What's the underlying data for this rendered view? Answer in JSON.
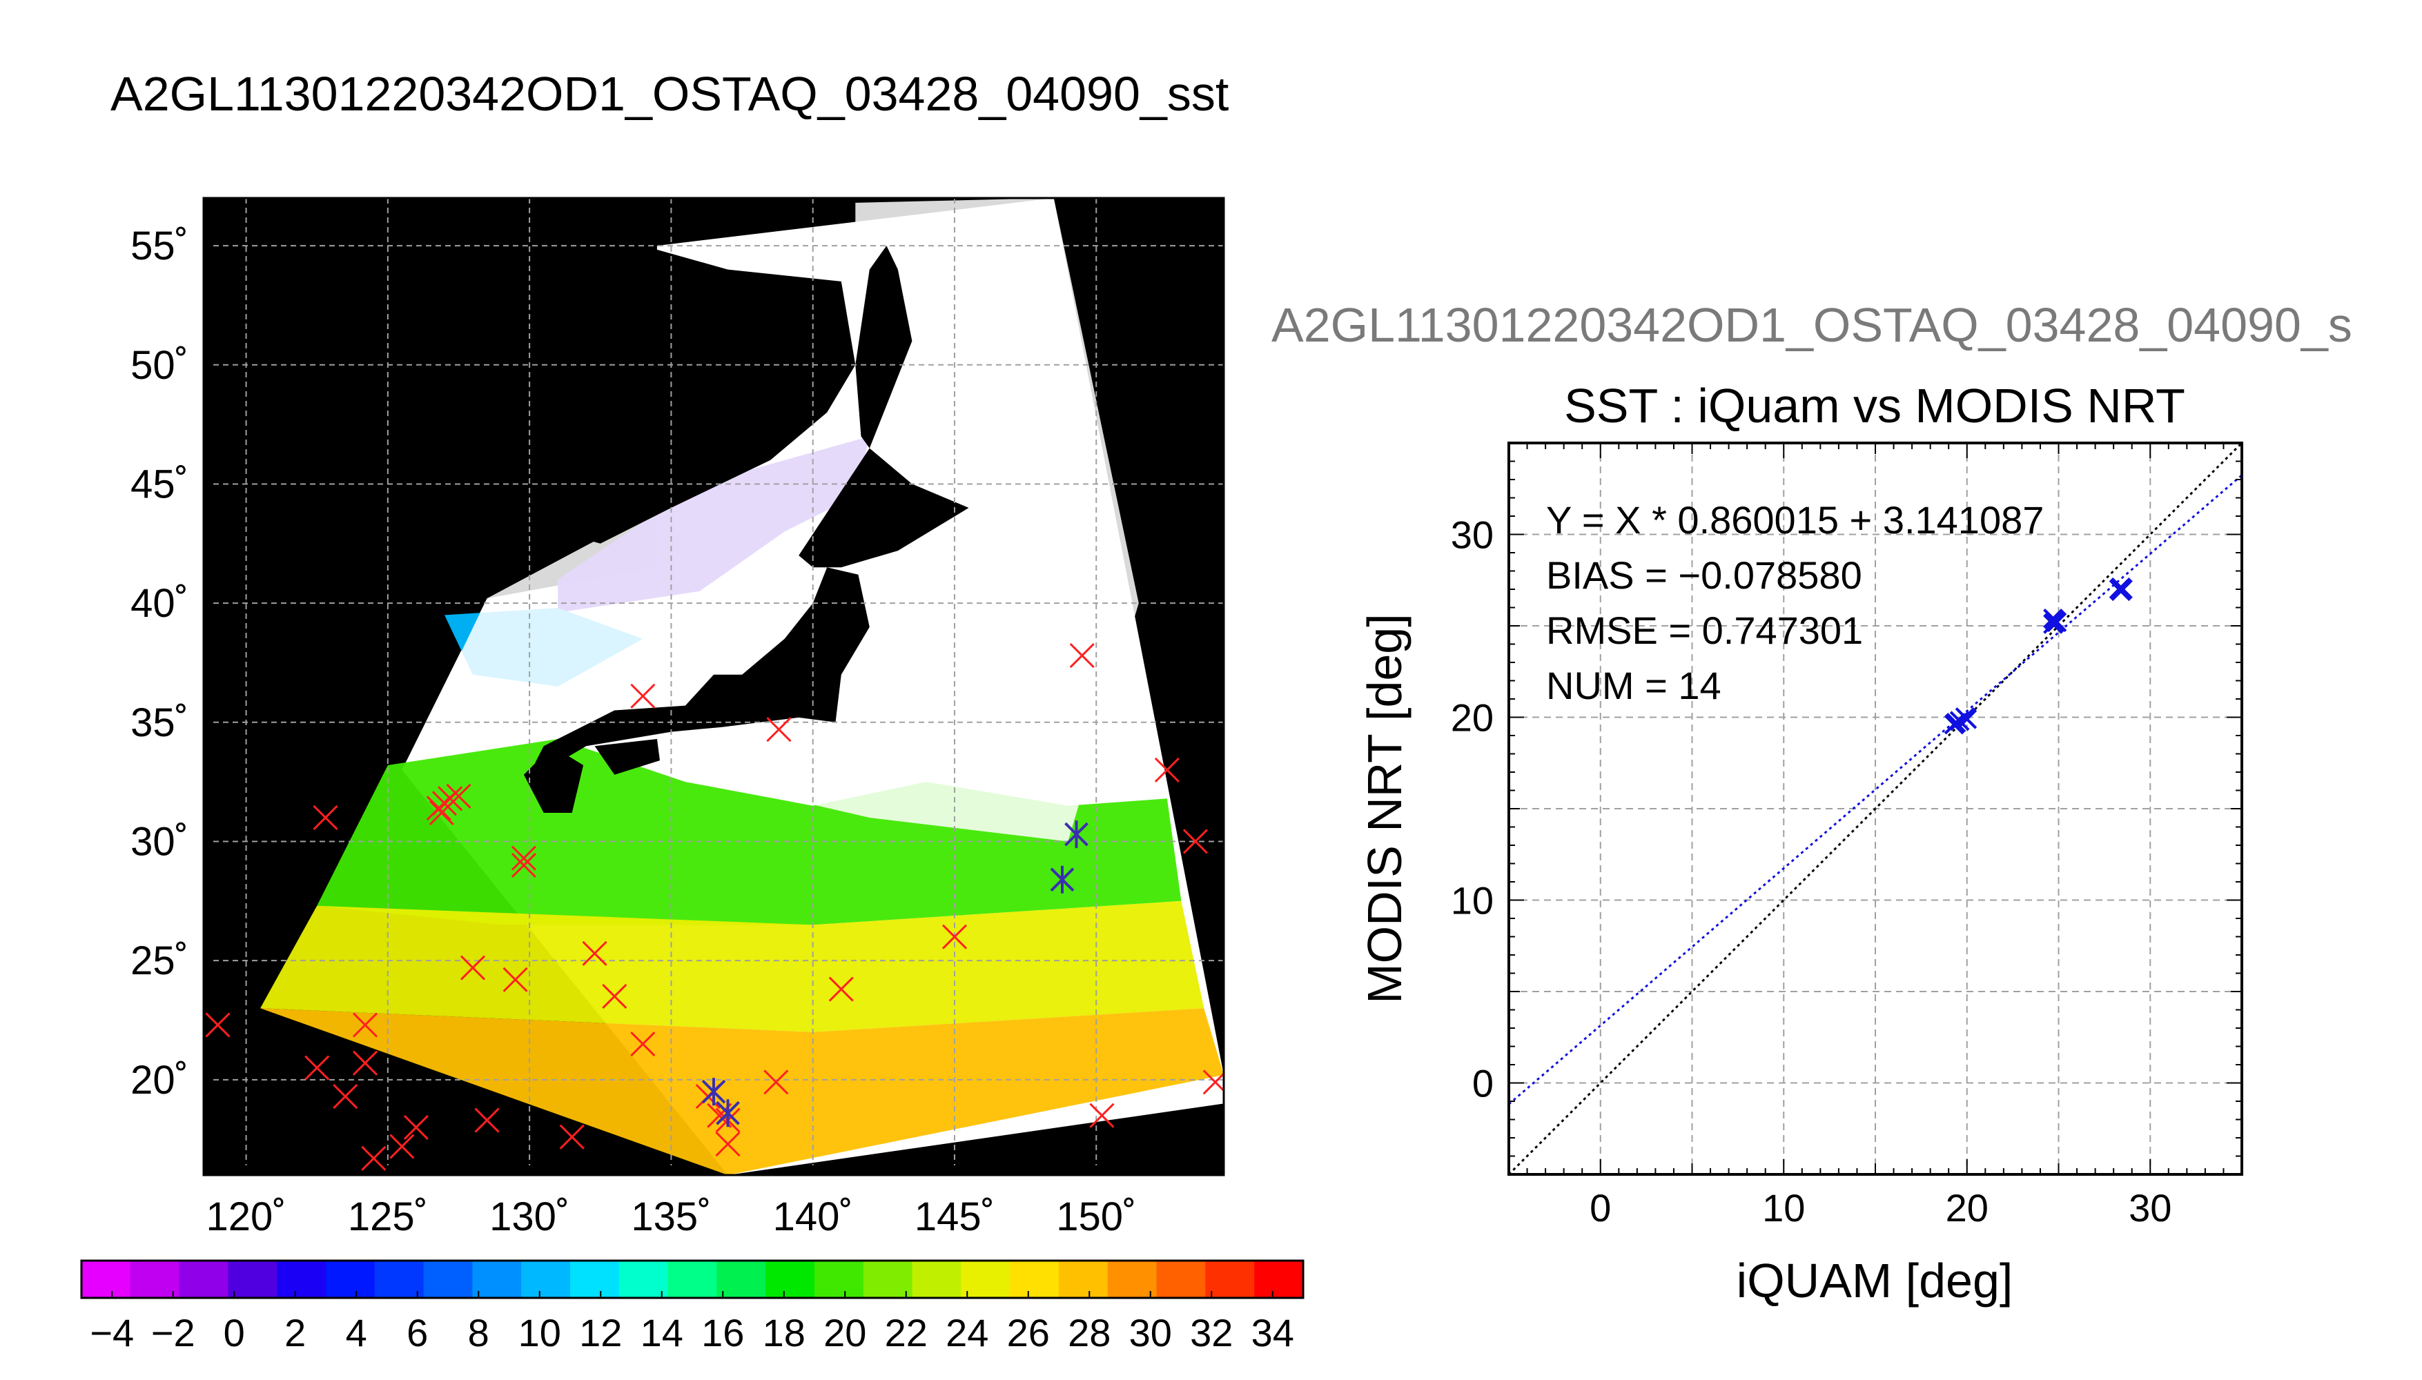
{
  "main_title": "A2GL11301220342OD1_OSTAQ_03428_04090_sst",
  "overlay_title": "A2GL11301220342OD1_OSTAQ_03428_04090_s",
  "colors": {
    "background": "#ffffff",
    "map_background": "#000000",
    "land": "#000000",
    "cloud": "#ffffff",
    "grid": "#a0a0a0",
    "match_marker": "#ff2020",
    "valid_marker": "#3a2fb0",
    "scatter_marker": "#1010e0",
    "fit_line": "#1010e0",
    "identity_line": "#000000",
    "overlay_title": "#7a7a7a"
  },
  "chart_data": [
    {
      "type": "heatmap",
      "title": "",
      "description_kind": "sst_swath_map",
      "x": {
        "min": 118.5,
        "max": 154.5,
        "ticks": [
          120,
          125,
          130,
          135,
          140,
          145,
          150
        ],
        "tick_labels": [
          "120˚",
          "125˚",
          "130˚",
          "135˚",
          "140˚",
          "145˚",
          "150˚"
        ]
      },
      "y": {
        "min": 16,
        "max": 57,
        "ticks": [
          20,
          25,
          30,
          35,
          40,
          45,
          50,
          55
        ],
        "tick_labels": [
          "20˚",
          "25˚",
          "30˚",
          "35˚",
          "40˚",
          "45˚",
          "50˚",
          "55˚"
        ]
      },
      "grid": true,
      "swath_lon_lat": [
        [
          128.5,
          40.2
        ],
        [
          134.5,
          41.5
        ],
        [
          134.5,
          55
        ],
        [
          148.5,
          57
        ],
        [
          154.5,
          20.2
        ],
        [
          154.5,
          19
        ],
        [
          137,
          16
        ],
        [
          125.5,
          33
        ]
      ],
      "cloud_lon_lat": [
        [
          134.5,
          44
        ],
        [
          141,
          49.5
        ],
        [
          141.5,
          55.5
        ],
        [
          141.5,
          56.8
        ],
        [
          148.5,
          57
        ],
        [
          151.5,
          40
        ],
        [
          150,
          34
        ],
        [
          149,
          30
        ],
        [
          142,
          31
        ],
        [
          136.5,
          32.5
        ],
        [
          129.5,
          36.5
        ],
        [
          125.8,
          33.5
        ],
        [
          128.5,
          40.2
        ]
      ],
      "sst_zones": [
        {
          "lon_lat": [
            [
              131,
              41
            ],
            [
              136,
              45
            ],
            [
              142,
              47
            ],
            [
              141.5,
              44.5
            ],
            [
              139,
              43
            ],
            [
              136,
              40.5
            ],
            [
              131,
              39.6
            ]
          ],
          "value": 0
        },
        {
          "lon_lat": [
            [
              127,
              39.5
            ],
            [
              131,
              39.8
            ],
            [
              134,
              38.5
            ],
            [
              131,
              36.5
            ],
            [
              128,
              37
            ]
          ],
          "value": 10
        },
        {
          "lon_lat": [
            [
              125,
              33.2
            ],
            [
              131,
              34.3
            ],
            [
              135.5,
              32.5
            ],
            [
              140,
              31.5
            ],
            [
              144,
              32.5
            ],
            [
              149,
              31.5
            ],
            [
              152.5,
              31.8
            ],
            [
              153,
              27.5
            ],
            [
              140,
              26.5
            ],
            [
              129,
              26.5
            ],
            [
              122.5,
              27.3
            ]
          ],
          "value": 20
        },
        {
          "lon_lat": [
            [
              122.5,
              27.3
            ],
            [
              140,
              26.5
            ],
            [
              153,
              27.5
            ],
            [
              153.8,
              23
            ],
            [
              140,
              22
            ],
            [
              120.5,
              23
            ]
          ],
          "value": 25
        },
        {
          "lon_lat": [
            [
              120.5,
              23
            ],
            [
              140,
              22
            ],
            [
              153.8,
              23
            ],
            [
              154.5,
              20.2
            ],
            [
              137,
              16
            ]
          ],
          "value": 28
        }
      ],
      "land_lon_lat": [
        [
          [
            139.5,
            42
          ],
          [
            142,
            46.5
          ],
          [
            143.5,
            45
          ],
          [
            145.5,
            44
          ],
          [
            143,
            42.2
          ],
          [
            141,
            41.5
          ],
          [
            140,
            41.5
          ]
        ],
        [
          [
            140.5,
            41.5
          ],
          [
            141.6,
            41.2
          ],
          [
            142,
            39
          ],
          [
            141,
            37
          ],
          [
            140.8,
            35
          ],
          [
            139.5,
            35.2
          ],
          [
            136.8,
            34.8
          ],
          [
            135,
            34.6
          ],
          [
            132,
            34
          ],
          [
            131,
            33.3
          ],
          [
            130.2,
            33.3
          ],
          [
            130.5,
            34
          ],
          [
            131.5,
            34.6
          ],
          [
            133,
            35.5
          ],
          [
            135.5,
            35.7
          ],
          [
            136.5,
            37
          ],
          [
            137.5,
            37
          ],
          [
            139,
            38.5
          ],
          [
            140,
            40
          ]
        ],
        [
          [
            130.8,
            34
          ],
          [
            131.9,
            33.2
          ],
          [
            131.5,
            31.2
          ],
          [
            130.5,
            31.2
          ],
          [
            129.8,
            32.8
          ]
        ],
        [
          [
            132.3,
            34
          ],
          [
            134.5,
            34.3
          ],
          [
            134.6,
            33.4
          ],
          [
            133,
            32.8
          ]
        ],
        [
          [
            142,
            46.5
          ],
          [
            143.5,
            51
          ],
          [
            143,
            54
          ],
          [
            142.6,
            55
          ],
          [
            142,
            54
          ],
          [
            141.5,
            50
          ],
          [
            141.7,
            47
          ]
        ],
        [
          [
            131,
            56.5
          ],
          [
            132.5,
            55.5
          ],
          [
            137,
            54
          ],
          [
            141,
            53.5
          ],
          [
            141.5,
            50
          ],
          [
            140.5,
            48
          ],
          [
            138.5,
            46
          ],
          [
            135,
            44
          ],
          [
            132.5,
            42.5
          ],
          [
            131,
            43
          ],
          [
            126,
            42
          ],
          [
            124,
            40
          ],
          [
            121,
            39
          ],
          [
            121,
            56.5
          ]
        ]
      ],
      "match_points": [
        [
          119,
          22.3
        ],
        [
          122.5,
          20.5
        ],
        [
          123.5,
          19.3
        ],
        [
          124.5,
          16.7
        ],
        [
          125.5,
          17.2
        ],
        [
          126,
          18
        ],
        [
          124.2,
          22.3
        ],
        [
          124.2,
          20.7
        ],
        [
          122.8,
          31
        ],
        [
          126.8,
          31.4
        ],
        [
          127.2,
          31.8
        ],
        [
          127,
          31.6
        ],
        [
          127.5,
          31.9
        ],
        [
          126.9,
          31.2
        ],
        [
          128,
          24.7
        ],
        [
          128.5,
          18.3
        ],
        [
          129.5,
          24.2
        ],
        [
          129.8,
          29.3
        ],
        [
          129.8,
          29
        ],
        [
          131.5,
          17.6
        ],
        [
          132.3,
          25.3
        ],
        [
          133,
          23.5
        ],
        [
          134,
          21.5
        ],
        [
          134,
          36.1
        ],
        [
          136.3,
          19.3
        ],
        [
          136.7,
          18.5
        ],
        [
          137,
          17.3
        ],
        [
          137,
          18.3
        ],
        [
          138.7,
          19.9
        ],
        [
          138.8,
          34.7
        ],
        [
          141,
          23.8
        ],
        [
          145,
          26
        ],
        [
          149.5,
          37.8
        ],
        [
          150.2,
          18.5
        ],
        [
          152.5,
          33
        ],
        [
          153.5,
          30
        ],
        [
          154.2,
          19.9
        ]
      ],
      "valid_points": [
        [
          136.5,
          19.5
        ],
        [
          148.8,
          28.4
        ],
        [
          149.3,
          30.3
        ],
        [
          137,
          18.6
        ]
      ],
      "colorbar": {
        "min": -5,
        "max": 35,
        "step": 2,
        "tick_values": [
          -4,
          -2,
          0,
          2,
          4,
          6,
          8,
          10,
          12,
          14,
          16,
          18,
          20,
          22,
          24,
          26,
          28,
          30,
          32,
          34
        ],
        "tick_labels": [
          "−4",
          "−2",
          "0",
          "2",
          "4",
          "6",
          "8",
          "10",
          "12",
          "14",
          "16",
          "18",
          "20",
          "22",
          "24",
          "26",
          "28",
          "30",
          "32",
          "34"
        ],
        "colors": [
          "#e600ff",
          "#c000f0",
          "#9000e8",
          "#5000e0",
          "#1a00f5",
          "#0018ff",
          "#0038ff",
          "#0060ff",
          "#0090ff",
          "#00b8ff",
          "#00e0ff",
          "#00ffcc",
          "#00ff88",
          "#00f050",
          "#00e800",
          "#40e800",
          "#80ec00",
          "#c0f000",
          "#e8f000",
          "#ffe000",
          "#ffc000",
          "#ff9000",
          "#ff6000",
          "#ff3000",
          "#ff0000"
        ]
      }
    },
    {
      "type": "scatter",
      "title": "SST : iQuam vs MODIS NRT",
      "xlabel": "iQUAM [deg]",
      "ylabel": "MODIS NRT [deg]",
      "xlim": [
        -5,
        35
      ],
      "ylim": [
        -5,
        35
      ],
      "x_ticks": [
        0,
        10,
        20,
        30
      ],
      "y_ticks": [
        0,
        10,
        20,
        30
      ],
      "grid": true,
      "annotations": [
        "Y = X * 0.860015 + 3.141087",
        "BIAS = −0.078580",
        "RMSE = 0.747301",
        "NUM = 14"
      ],
      "fit": {
        "slope": 0.860015,
        "intercept": 3.141087
      },
      "points": [
        [
          19.4,
          19.7
        ],
        [
          19.6,
          19.8
        ],
        [
          19.9,
          20.0
        ],
        [
          20.0,
          19.9
        ],
        [
          19.3,
          19.6
        ],
        [
          24.7,
          25.1
        ],
        [
          24.8,
          25.3
        ],
        [
          24.8,
          25.2
        ],
        [
          24.7,
          25.4
        ],
        [
          24.9,
          25.2
        ],
        [
          28.4,
          26.9
        ],
        [
          28.3,
          27.0
        ],
        [
          28.5,
          27.0
        ],
        [
          28.4,
          27.1
        ]
      ]
    }
  ]
}
